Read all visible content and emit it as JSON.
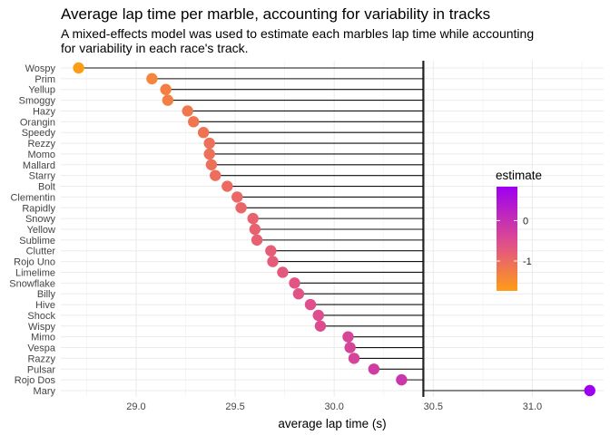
{
  "chart_data": {
    "type": "dot",
    "title": "Average lap time per marble, accounting for variability in tracks",
    "subtitle": "A mixed-effects model was used to estimate each marbles lap time while accounting for variability in each race's track.",
    "xlabel": "average lap time (s)",
    "ylabel": "",
    "xlim": [
      28.62,
      31.36
    ],
    "xticks": [
      29.0,
      29.5,
      30.0,
      30.5,
      31.0
    ],
    "xtick_labels": [
      "29.0",
      "29.5",
      "30.0",
      "30.5",
      "31.0"
    ],
    "reference_line_x": 30.45,
    "grid": true,
    "categories": [
      "Wospy",
      "Prim",
      "Yellup",
      "Smoggy",
      "Hazy",
      "Orangin",
      "Speedy",
      "Rezzy",
      "Momo",
      "Mallard",
      "Starry",
      "Bolt",
      "Clementin",
      "Rapidly",
      "Snowy",
      "Yellow",
      "Sublime",
      "Clutter",
      "Rojo Uno",
      "Limelime",
      "Snowflake",
      "Billy",
      "Hive",
      "Shock",
      "Wispy",
      "Mimo",
      "Vespa",
      "Razzy",
      "Pulsar",
      "Rojo Dos",
      "Mary"
    ],
    "values": [
      28.71,
      29.08,
      29.15,
      29.16,
      29.26,
      29.29,
      29.34,
      29.37,
      29.37,
      29.38,
      29.4,
      29.46,
      29.51,
      29.53,
      29.59,
      29.6,
      29.61,
      29.68,
      29.69,
      29.74,
      29.8,
      29.82,
      29.88,
      29.92,
      29.93,
      30.07,
      30.08,
      30.1,
      30.2,
      30.34,
      31.29
    ],
    "estimate": [
      -1.74,
      -1.37,
      -1.3,
      -1.29,
      -1.19,
      -1.16,
      -1.11,
      -1.08,
      -1.08,
      -1.07,
      -1.05,
      -0.99,
      -0.94,
      -0.92,
      -0.86,
      -0.85,
      -0.84,
      -0.77,
      -0.76,
      -0.71,
      -0.65,
      -0.63,
      -0.57,
      -0.53,
      -0.52,
      -0.38,
      -0.37,
      -0.35,
      -0.25,
      -0.11,
      0.84
    ],
    "legend": {
      "title": "estimate",
      "placement": "right",
      "ticks": [
        0,
        -1
      ],
      "tick_labels": [
        "0",
        "-1"
      ],
      "range": [
        -1.74,
        0.84
      ],
      "color_high": "#9D00F0",
      "color_low": "#FF9C17"
    }
  }
}
